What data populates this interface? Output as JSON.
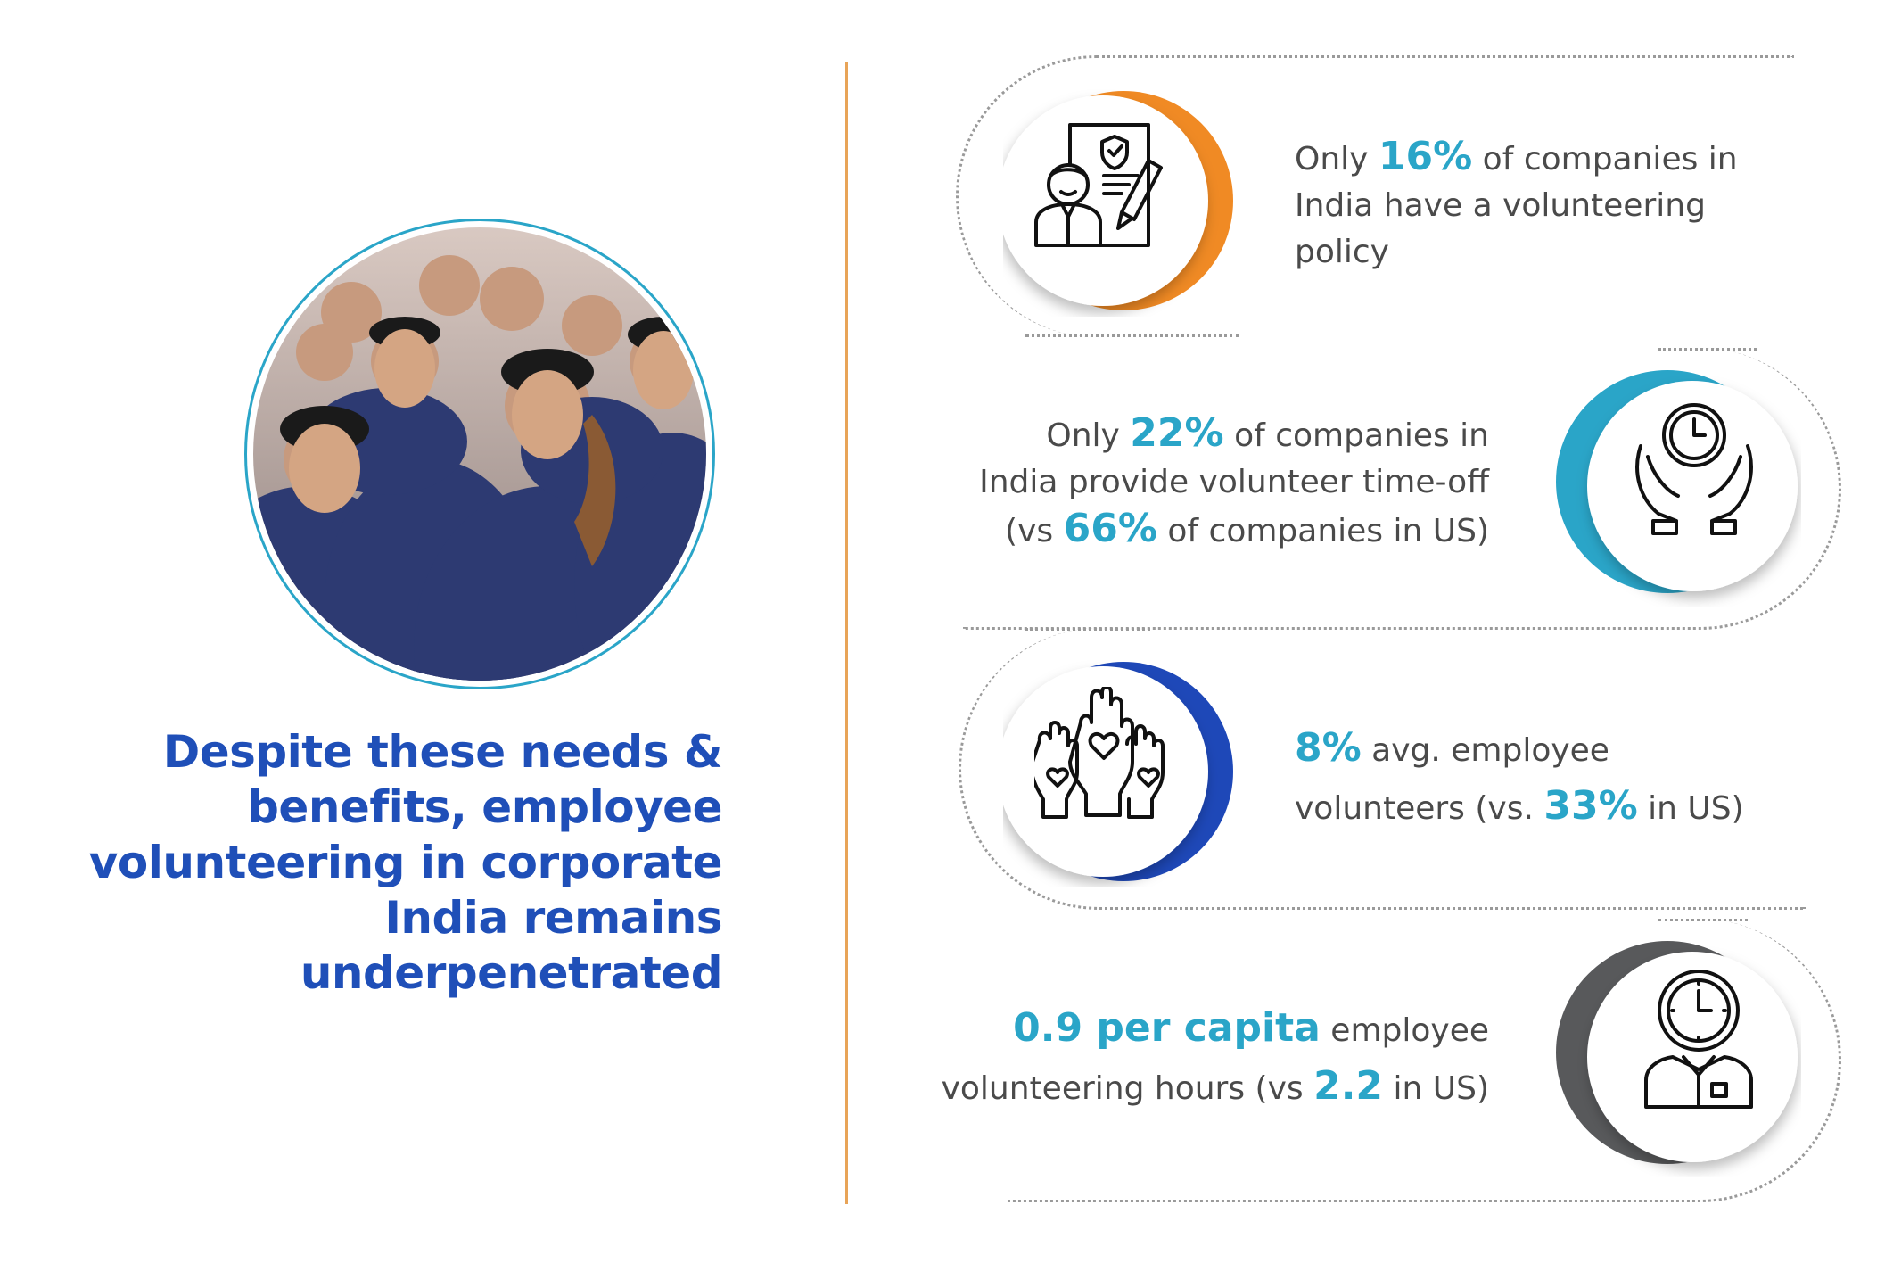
{
  "headline": {
    "lines": [
      "Despite these needs &",
      "benefits, employee",
      "volunteering in corporate",
      "India remains",
      "underpenetrated"
    ]
  },
  "photo": {
    "icon": "group-of-volunteers-photo"
  },
  "stats": [
    {
      "icon": "policy-document-person-icon",
      "accent": "#f08a24",
      "l1a": "Only ",
      "l1b": "16%",
      "l1c": " of companies in",
      "l2": "India have a volunteering",
      "l3": "policy"
    },
    {
      "icon": "clock-hands-icon",
      "accent": "#2aa5c8",
      "l1a": "Only ",
      "l1b": "22%",
      "l1c": " of companies in",
      "l2": "India provide volunteer time-off",
      "l3a": "(vs ",
      "l3b": "66%",
      "l3c": " of companies in US)"
    },
    {
      "icon": "raised-hands-heart-icon",
      "accent": "#1e48b8",
      "l1a": "8%",
      "l1b": " avg. employee",
      "l2a": "volunteers (vs. ",
      "l2b": "33%",
      "l2c": " in US)"
    },
    {
      "icon": "clock-employee-icon",
      "accent": "#58595b",
      "l1a": "0.9 per capita",
      "l1b": " employee",
      "l2a": "volunteering hours (vs ",
      "l2b": "2.2",
      "l2c": " in US)"
    }
  ]
}
